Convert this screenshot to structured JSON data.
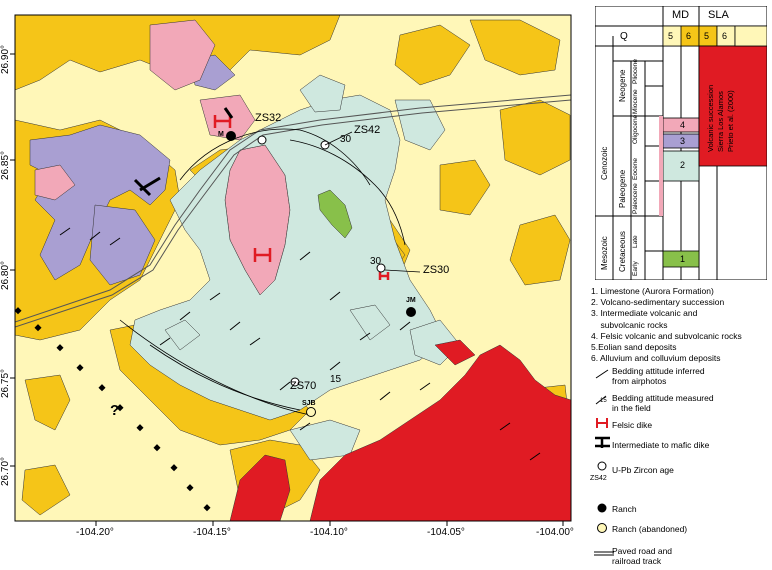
{
  "map": {
    "x_ticks": [
      "-104.20°",
      "-104.15°",
      "-104.10°",
      "-104.05°",
      "-104.00°"
    ],
    "y_ticks": [
      "26.90°",
      "26.85°",
      "26.80°",
      "26.75°",
      "26.70°"
    ],
    "labels": {
      "zs32": "ZS32",
      "zs42": "ZS42",
      "zs30": "ZS30",
      "zs70": "ZS70",
      "sjb": "SJB",
      "jm": "JM",
      "m": "M",
      "question": "?",
      "dip30a": "30",
      "dip30b": "30",
      "dip15": "15"
    },
    "colors": {
      "alluvium": "#fff7b8",
      "volcano_sedimentary": "#f5c518",
      "intermediate": "#a99fd2",
      "felsic": "#f2a8b8",
      "limestone": "#88c04a",
      "eolian": "#cfe8df",
      "sla_red": "#e01b23"
    }
  },
  "strat": {
    "headers": {
      "md": "MD",
      "sla": "SLA"
    },
    "q": "Q",
    "col_nums": [
      "5",
      "6",
      "5",
      "6"
    ],
    "cenozoic": "Cenozoic",
    "mesozoic": "Mesozoic",
    "neogene": "Neogene",
    "paleogene": "Paleogene",
    "cretaceous": "Cretaceous",
    "pliocene": "Pliocene",
    "miocene": "Miocene",
    "oligocene": "Oligocene",
    "eocene": "Eocene",
    "paleocene": "Paleocene",
    "late": "Late",
    "early": "Early",
    "units": [
      "4",
      "3",
      "2",
      "1"
    ],
    "sla_text": [
      "Volcanic succession",
      "Sierra Los Alamos",
      "Prieto et al. (2000)"
    ]
  },
  "legend": {
    "items": [
      "1. Limestone (Aurora Formation)",
      "2. Volcano-sedimentary succession",
      "3. Intermediate volcanic and",
      "    subvolcanic rocks",
      "4. Felsic volcanic and subvolcanic rocks",
      "5.Eolian sand deposits",
      "6. Alluvium and colluvium deposits"
    ],
    "symbols": {
      "bed_photo": [
        "Bedding attitude inferred",
        "from airphotos"
      ],
      "bed_field": [
        "Bedding attitude measured",
        "in the field"
      ],
      "bed_field_num": "15",
      "felsic_dike": "Felsic dike",
      "mafic_dike": "Intermediate to mafic dike",
      "zircon_tag": "ZS42",
      "zircon": "U-Pb Zircon age",
      "ranch": "Ranch",
      "ranch_abandoned": "Ranch (abandoned)",
      "road": [
        "Paved road and",
        "railroad track"
      ]
    }
  }
}
